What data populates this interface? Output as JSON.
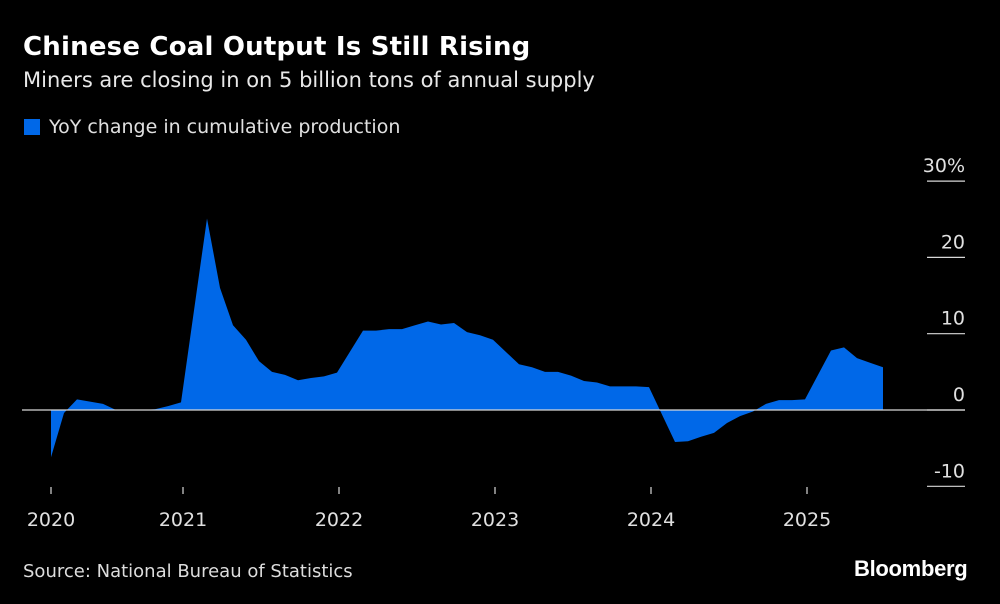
{
  "title": "Chinese Coal Output Is Still Rising",
  "subtitle": "Miners are closing in on 5 billion tons of annual supply",
  "source": "Source: National Bureau of Statistics",
  "logo": "Bloomberg",
  "colors": {
    "series": "#0068e8",
    "background": "#000000",
    "axis": "#cccccc"
  },
  "chart_data": {
    "type": "area",
    "title": "Chinese Coal Output Is Still Rising",
    "subtitle": "Miners are closing in on 5 billion tons of annual supply",
    "legend_position": "top-left",
    "grid": false,
    "ylim": [
      -10,
      30
    ],
    "y_ticks": [
      30,
      20,
      10,
      0,
      -10
    ],
    "y_tick_labels": [
      "30%",
      "20",
      "10",
      "0",
      "-10"
    ],
    "x_ticks": [
      "2020",
      "2021",
      "2022",
      "2023",
      "2024",
      "2025"
    ],
    "series": [
      {
        "name": "YoY change in cumulative production",
        "x": [
          "2020-02",
          "2020-03",
          "2020-04",
          "2020-05",
          "2020-06",
          "2020-07",
          "2020-08",
          "2020-09",
          "2020-10",
          "2020-11",
          "2020-12",
          "2021-02",
          "2021-03",
          "2021-04",
          "2021-05",
          "2021-06",
          "2021-07",
          "2021-08",
          "2021-09",
          "2021-10",
          "2021-11",
          "2021-12",
          "2022-02",
          "2022-03",
          "2022-04",
          "2022-05",
          "2022-06",
          "2022-07",
          "2022-08",
          "2022-09",
          "2022-10",
          "2022-11",
          "2022-12",
          "2023-02",
          "2023-03",
          "2023-04",
          "2023-05",
          "2023-06",
          "2023-07",
          "2023-08",
          "2023-09",
          "2023-10",
          "2023-11",
          "2023-12",
          "2024-02",
          "2024-03",
          "2024-04",
          "2024-05",
          "2024-06",
          "2024-07",
          "2024-08",
          "2024-09",
          "2024-10",
          "2024-11",
          "2024-12",
          "2025-02",
          "2025-03",
          "2025-04",
          "2025-05",
          "2025-06"
        ],
        "values": [
          -6.2,
          -0.4,
          1.4,
          1.1,
          0.8,
          0.0,
          0.0,
          0.0,
          0.1,
          0.5,
          1.0,
          25.1,
          16.0,
          11.1,
          9.2,
          6.4,
          5.0,
          4.6,
          3.9,
          4.2,
          4.4,
          4.9,
          10.4,
          10.4,
          10.6,
          10.6,
          11.1,
          11.6,
          11.2,
          11.4,
          10.2,
          9.8,
          9.2,
          6.0,
          5.6,
          5.0,
          5.0,
          4.5,
          3.8,
          3.6,
          3.1,
          3.1,
          3.1,
          3.0,
          -4.2,
          -4.1,
          -3.5,
          -3.0,
          -1.7,
          -0.8,
          -0.2,
          0.8,
          1.3,
          1.3,
          1.4,
          7.8,
          8.2,
          6.8,
          6.2,
          5.6
        ]
      }
    ]
  }
}
